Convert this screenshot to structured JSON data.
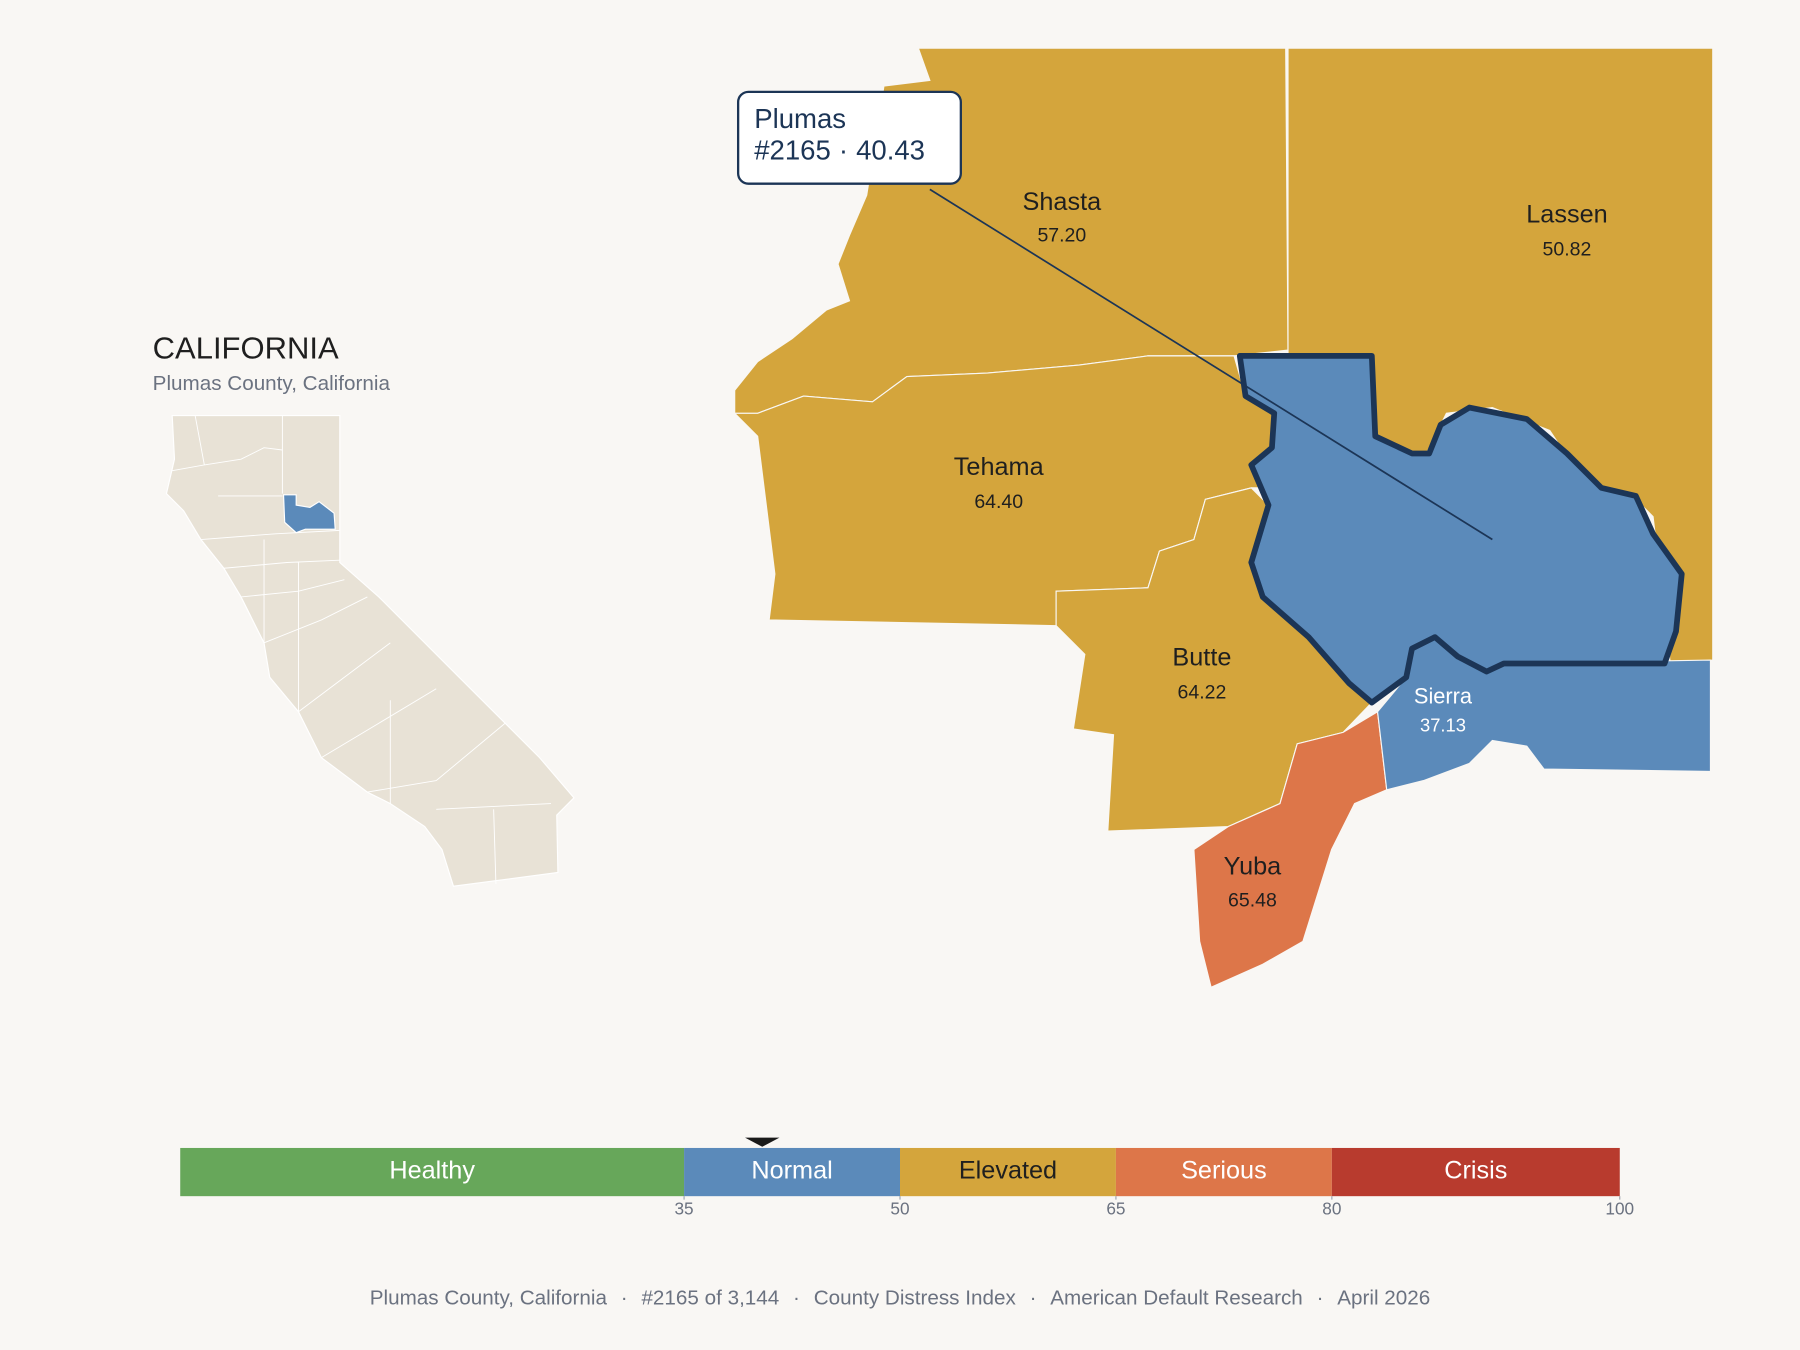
{
  "inset": {
    "title": "CALIFORNIA",
    "subtitle": "Plumas County, California"
  },
  "counties": [
    {
      "name": "Shasta",
      "value": {
        "value": 57.2,
        "label": "57.20"
      }
    },
    {
      "name": "Lassen",
      "value": {
        "value": 50.82,
        "label": "50.82"
      }
    },
    {
      "name": "Tehama",
      "value": {
        "value": 64.4,
        "label": "64.40"
      }
    },
    {
      "name": "Butte",
      "value": {
        "value": 64.22,
        "label": "64.22"
      }
    },
    {
      "name": "Yuba",
      "value": {
        "value": 65.48,
        "label": "65.48"
      }
    },
    {
      "name": "Sierra",
      "value": {
        "value": 37.13,
        "label": "37.13"
      }
    }
  ],
  "tooltip": {
    "name": "Plumas",
    "rank": "#2165",
    "separator": "·",
    "value": 40.43
  },
  "legend": {
    "range": [
      0,
      100
    ],
    "bands": [
      {
        "label": "Healthy",
        "color": "#67a75a"
      },
      {
        "label": "Normal",
        "color": "#5b8aba"
      },
      {
        "label": "Elevated",
        "color": "#d4a53c"
      },
      {
        "label": "Serious",
        "color": "#dd7649"
      },
      {
        "label": "Crisis",
        "color": "#b83b2e"
      }
    ],
    "ticks": [
      35,
      50,
      65,
      80,
      100
    ]
  },
  "footer": {
    "separator": "·",
    "items": [
      "Plumas County, California",
      "#2165 of 3,144",
      "County Distress Index",
      "American Default Research",
      "April 2026"
    ]
  }
}
